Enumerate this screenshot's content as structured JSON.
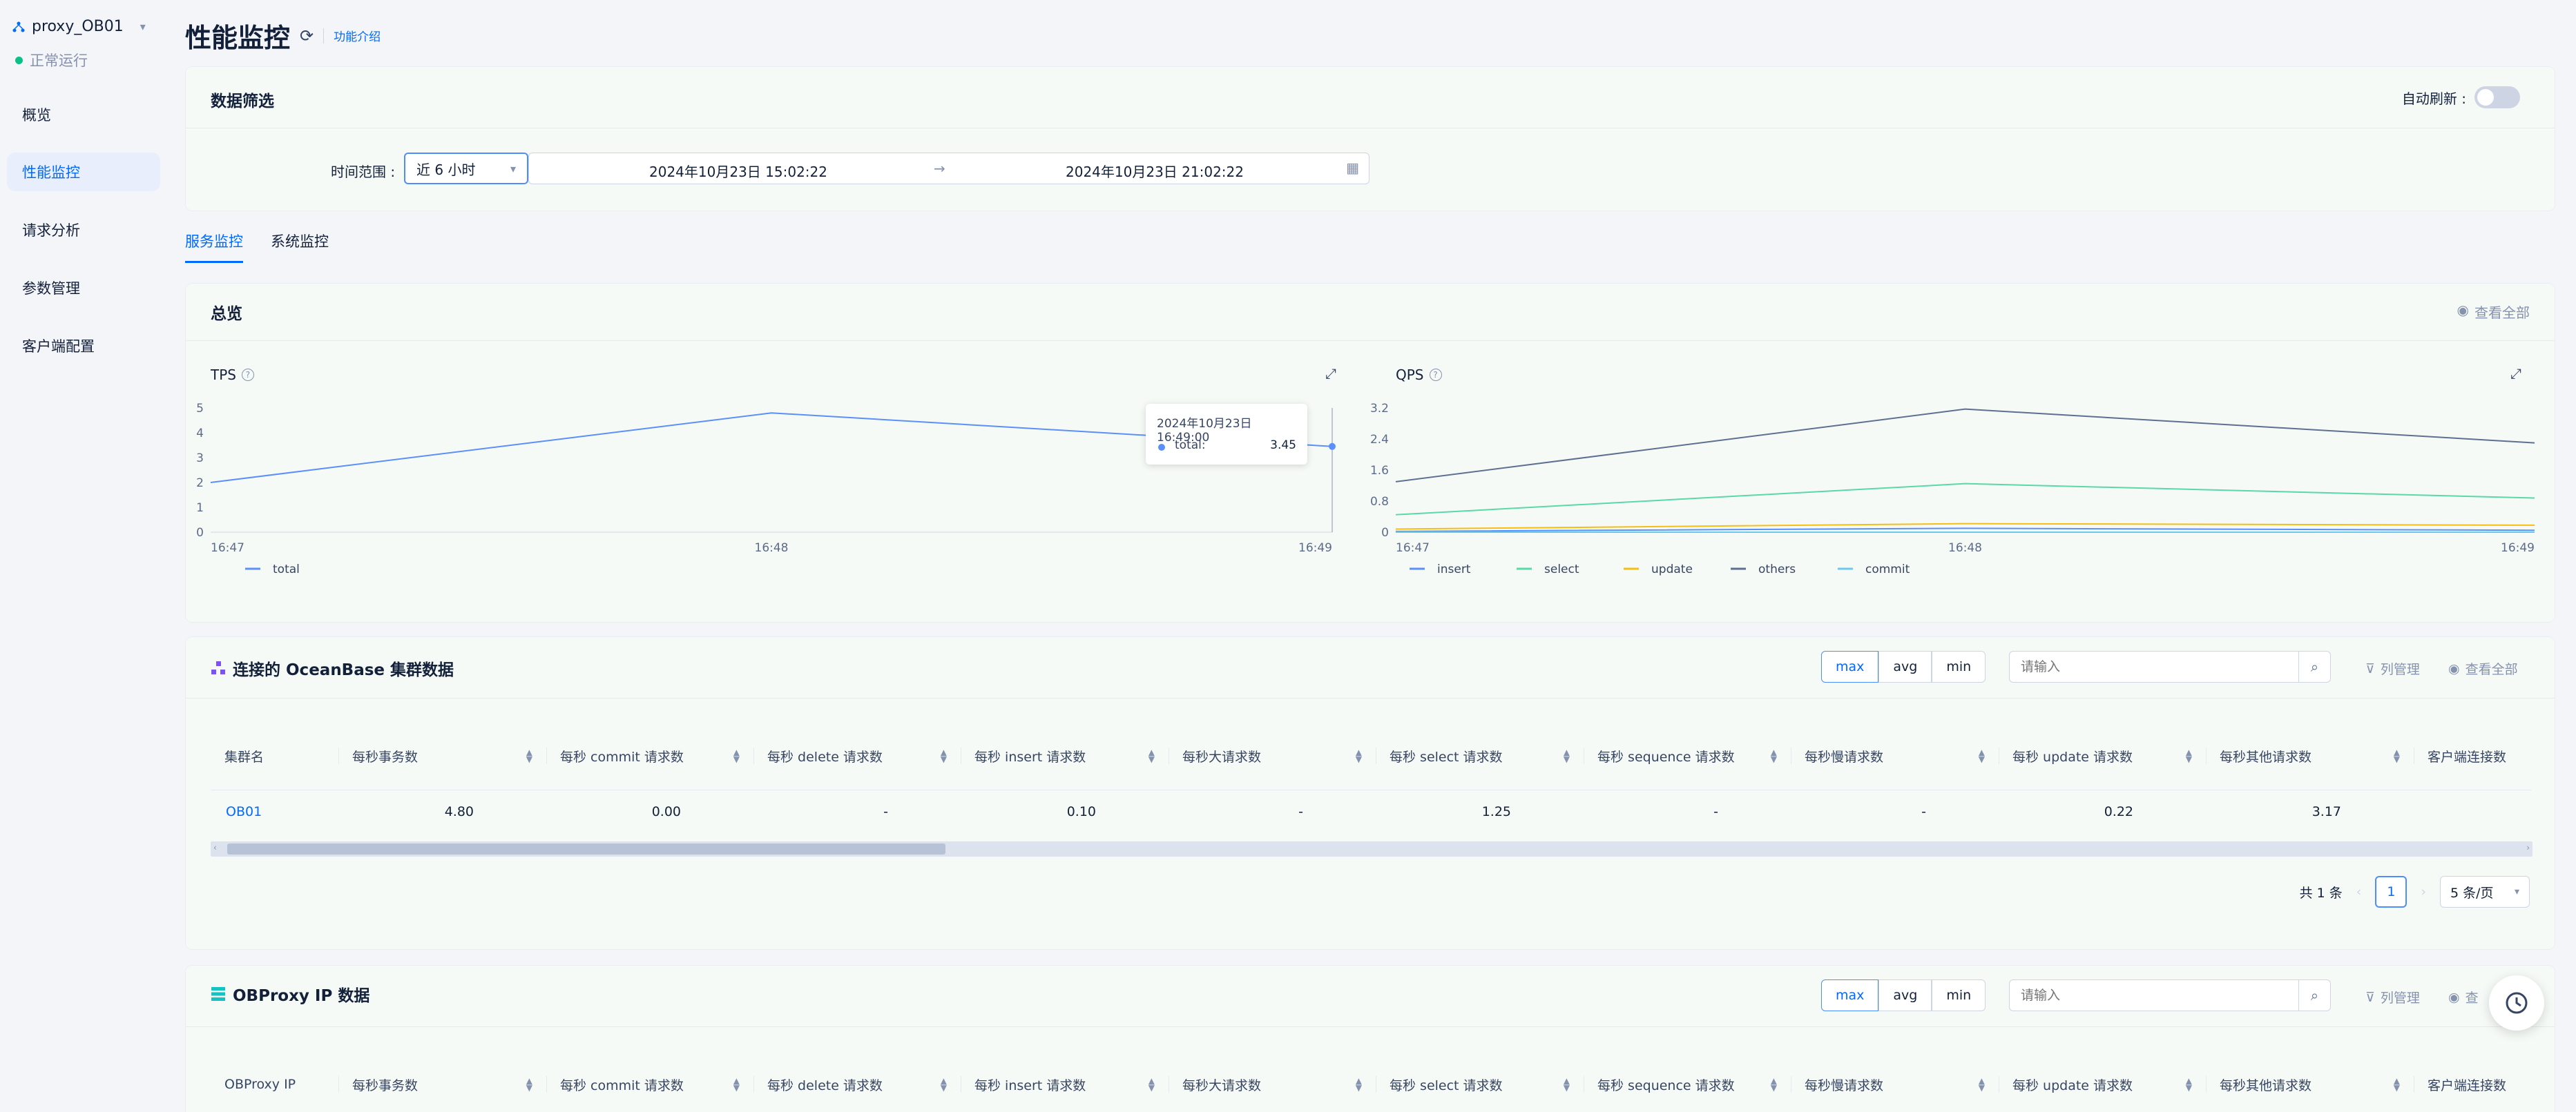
{
  "app": {
    "name": "proxy_OB01",
    "status": "正常运行",
    "status_color": "#0ac185"
  },
  "nav": [
    {
      "label": "概览"
    },
    {
      "label": "性能监控",
      "active": true
    },
    {
      "label": "请求分析"
    },
    {
      "label": "参数管理"
    },
    {
      "label": "客户端配置"
    }
  ],
  "header": {
    "title": "性能监控",
    "intro_link": "功能介绍"
  },
  "filter": {
    "title": "数据筛选",
    "auto_refresh_label": "自动刷新 :",
    "auto_refresh_on": false,
    "time_range_label": "时间范围 :",
    "time_range_value": "近 6 小时",
    "start": "2024年10月23日 15:02:22",
    "separator": "→",
    "end": "2024年10月23日 21:02:22"
  },
  "tabs": [
    {
      "label": "服务监控",
      "active": true
    },
    {
      "label": "系统监控"
    }
  ],
  "overview": {
    "title": "总览",
    "view_all": "查看全部",
    "tooltip": {
      "time": "2024年10月23日 16:49:00",
      "series": "total:",
      "value": "3.45"
    }
  },
  "chart_data": [
    {
      "type": "line",
      "title": "TPS",
      "x": [
        "16:47",
        "16:48",
        "16:49"
      ],
      "ylim": [
        0,
        5
      ],
      "yticks": [
        "0",
        "1",
        "2",
        "3",
        "4",
        "5"
      ],
      "series": [
        {
          "name": "total",
          "values": [
            2.0,
            4.8,
            3.45
          ],
          "color": "#5b8ff9"
        }
      ],
      "legend": "bottom-left"
    },
    {
      "type": "line",
      "title": "QPS",
      "x": [
        "16:47",
        "16:48",
        "16:49"
      ],
      "ylim": [
        0,
        3.2
      ],
      "yticks": [
        "0",
        "0.8",
        "1.6",
        "2.4",
        "3.2"
      ],
      "series": [
        {
          "name": "insert",
          "values": [
            0.02,
            0.1,
            0.05
          ],
          "color": "#5b8ff9"
        },
        {
          "name": "select",
          "values": [
            0.45,
            1.25,
            0.88
          ],
          "color": "#5ad8a6"
        },
        {
          "name": "update",
          "values": [
            0.08,
            0.22,
            0.18
          ],
          "color": "#f6bd16"
        },
        {
          "name": "others",
          "values": [
            1.3,
            3.17,
            2.3
          ],
          "color": "#5d7092"
        },
        {
          "name": "commit",
          "values": [
            0.0,
            0.0,
            0.0
          ],
          "color": "#6dc8ec"
        }
      ],
      "legend": "bottom-left"
    }
  ],
  "cluster_table": {
    "title": "连接的 OceanBase 集群数据",
    "modes": [
      "max",
      "avg",
      "min"
    ],
    "search_placeholder": "请输入",
    "column_manage": "列管理",
    "view_all": "查看全部",
    "columns": [
      "集群名",
      "每秒事务数",
      "每秒 commit 请求数",
      "每秒 delete 请求数",
      "每秒 insert 请求数",
      "每秒大请求数",
      "每秒 select 请求数",
      "每秒 sequence 请求数",
      "每秒慢请求数",
      "每秒 update 请求数",
      "每秒其他请求数",
      "客户端连接数"
    ],
    "rows": [
      [
        "OB01",
        "4.80",
        "0.00",
        "-",
        "0.10",
        "-",
        "1.25",
        "-",
        "-",
        "0.22",
        "3.17",
        ""
      ]
    ],
    "total": "共 1 条",
    "page": "1",
    "page_size": "5 条/页"
  },
  "proxy_table": {
    "title": "OBProxy IP 数据",
    "modes": [
      "max",
      "avg",
      "min"
    ],
    "search_placeholder": "请输入",
    "column_manage": "列管理",
    "view_all": "查",
    "columns": [
      "OBProxy IP",
      "每秒事务数",
      "每秒 commit 请求数",
      "每秒 delete 请求数",
      "每秒 insert 请求数",
      "每秒大请求数",
      "每秒 select 请求数",
      "每秒 sequence 请求数",
      "每秒慢请求数",
      "每秒 update 请求数",
      "每秒其他请求数",
      "客户端连接数"
    ]
  }
}
